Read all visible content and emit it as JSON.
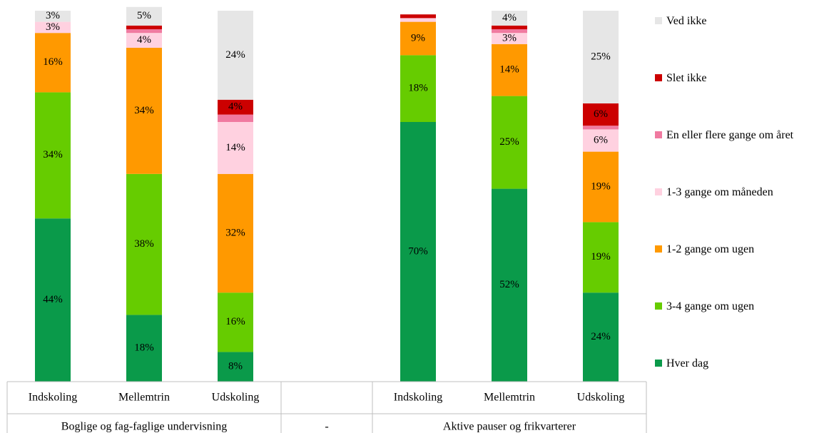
{
  "chart_data": {
    "type": "stacked_bar",
    "categories": [
      "Indskoling",
      "Mellemtrin",
      "Udskoling",
      null,
      "Indskoling",
      "Mellemtrin",
      "Udskoling"
    ],
    "groups": [
      "Boglige og fag-faglige undervisning",
      "-",
      "Aktive pauser og frikvarterer"
    ],
    "ylim": [
      0,
      100
    ],
    "series": [
      {
        "name": "Hver dag",
        "color": "#0a9a4a",
        "values": [
          44,
          18,
          8,
          null,
          70,
          52,
          24
        ],
        "value_labels": [
          "44%",
          "18%",
          "8%",
          null,
          "70%",
          "52%",
          "24%"
        ]
      },
      {
        "name": "3-4 gange om ugen",
        "color": "#66cc00",
        "values": [
          34,
          38,
          16,
          null,
          18,
          25,
          19
        ],
        "value_labels": [
          "34%",
          "38%",
          "16%",
          null,
          "18%",
          "25%",
          "19%"
        ]
      },
      {
        "name": "1-2 gange om ugen",
        "color": "#ff9900",
        "values": [
          16,
          34,
          32,
          null,
          9,
          14,
          19
        ],
        "value_labels": [
          "16%",
          "34%",
          "32%",
          null,
          "9%",
          "14%",
          "19%"
        ]
      },
      {
        "name": "1-3 gange om måneden",
        "color": "#ffd1e0",
        "values": [
          3,
          4,
          14,
          null,
          1,
          3,
          6
        ],
        "value_labels": [
          "3%",
          "4%",
          "14%",
          null,
          null,
          "3%",
          "6%"
        ]
      },
      {
        "name": "En eller flere gange om året",
        "color": "#f07aa0",
        "values": [
          0,
          1,
          2,
          null,
          0,
          1,
          1
        ],
        "value_labels": [
          null,
          null,
          null,
          null,
          null,
          null,
          null
        ]
      },
      {
        "name": "Slet ikke",
        "color": "#cc0000",
        "values": [
          0,
          1,
          4,
          null,
          1,
          1,
          6
        ],
        "value_labels": [
          null,
          null,
          "4%",
          null,
          null,
          null,
          "6%"
        ]
      },
      {
        "name": "Ved ikke",
        "color": "#e6e6e6",
        "values": [
          3,
          5,
          24,
          null,
          0,
          4,
          25
        ],
        "value_labels": [
          "3%",
          "5%",
          "24%",
          null,
          null,
          "4%",
          "25%"
        ]
      }
    ]
  }
}
